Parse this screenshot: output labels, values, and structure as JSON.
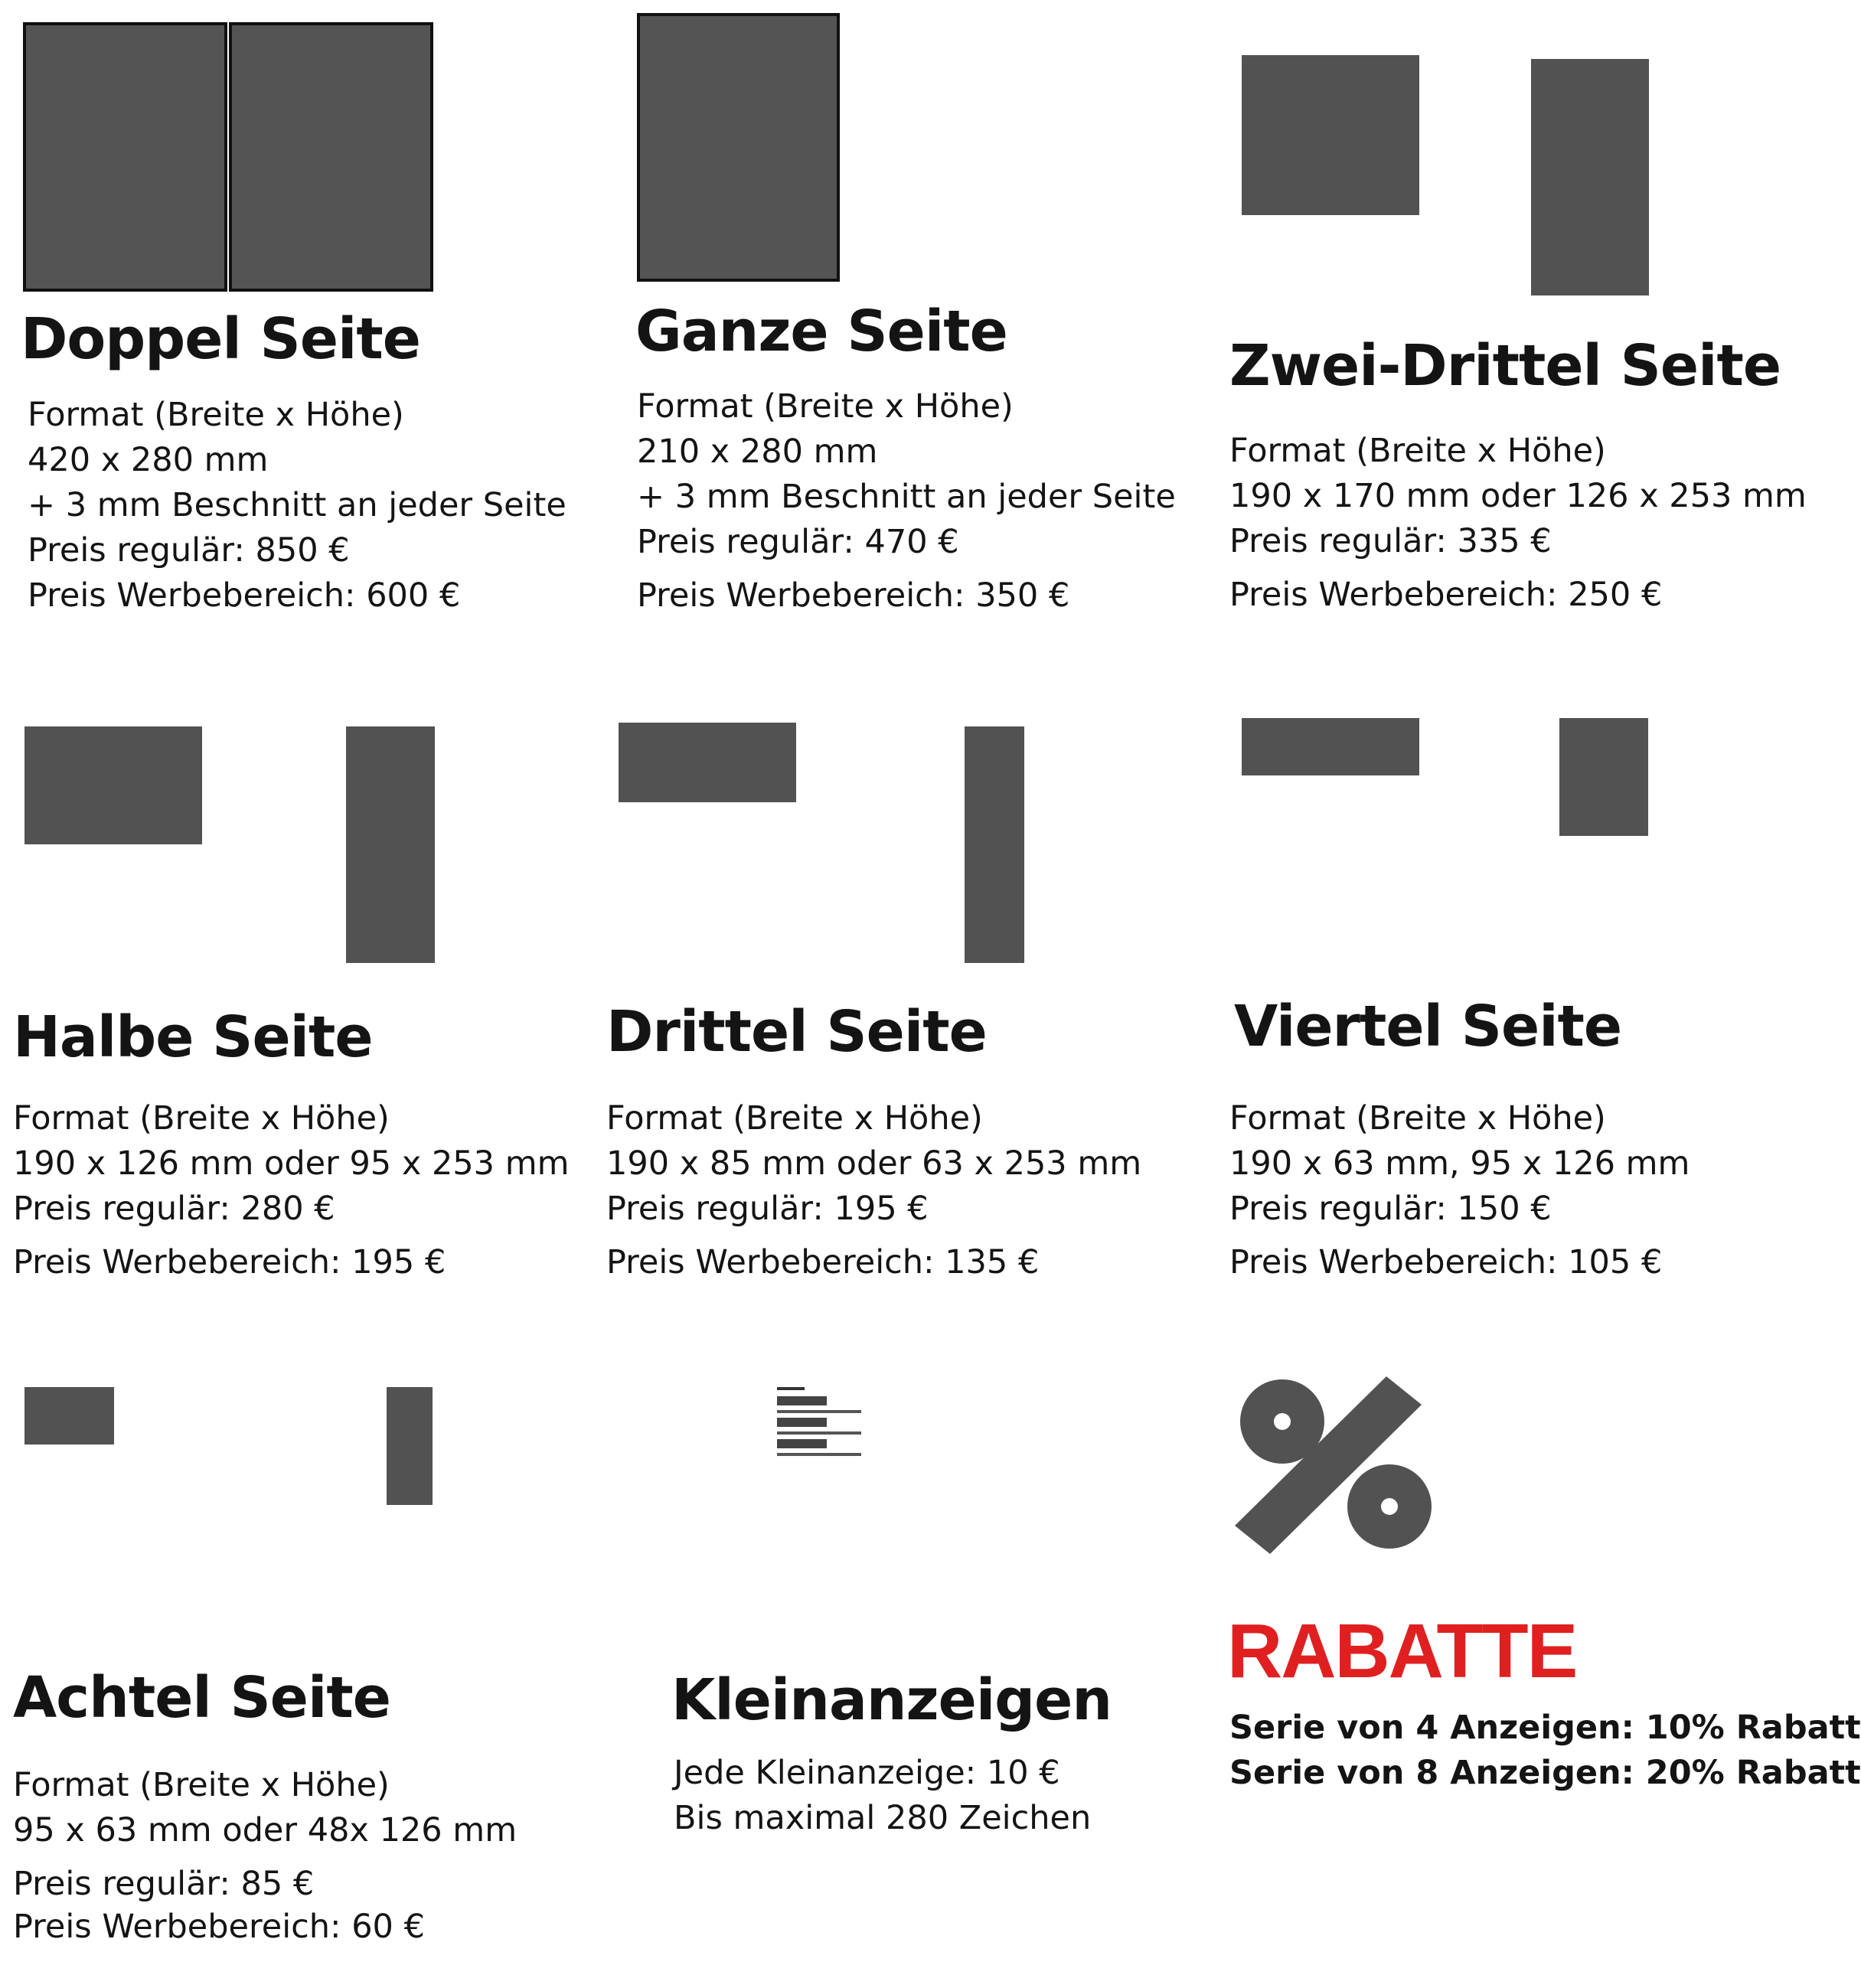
{
  "colors": {
    "shape": "#525252",
    "text": "#141414",
    "accent": "#e02020"
  },
  "icons": {
    "classified": "text-lines-icon",
    "discount": "percent-icon"
  },
  "formats": [
    {
      "title": "Doppel Seite",
      "size_label": "Format (Breite x Höhe)",
      "size": "420 x 280 mm",
      "bleed": "+ 3 mm Beschnitt an jeder Seite",
      "price_regular": "Preis regulär: 850 €",
      "price_ad_area": "Preis Werbebereich: 600 €"
    },
    {
      "title": "Ganze Seite",
      "size_label": "Format (Breite x Höhe)",
      "size": "210 x 280 mm",
      "bleed": "+ 3 mm Beschnitt an jeder Seite",
      "price_regular": "Preis regulär: 470 €",
      "price_ad_area": "Preis Werbebereich: 350 €"
    },
    {
      "title": "Zwei-Drittel Seite",
      "size_label": "Format (Breite x Höhe)",
      "size": "190 x 170 mm oder 126 x 253 mm",
      "price_regular": "Preis regulär: 335 €",
      "price_ad_area": "Preis Werbebereich: 250 €"
    },
    {
      "title": "Halbe Seite",
      "size_label": "Format (Breite x Höhe)",
      "size": "190 x 126 mm oder 95 x 253 mm",
      "price_regular": "Preis regulär: 280 €",
      "price_ad_area": "Preis Werbebereich: 195 €"
    },
    {
      "title": "Drittel Seite",
      "size_label": "Format (Breite x Höhe)",
      "size": "190 x 85 mm oder 63 x 253 mm",
      "price_regular": "Preis regulär: 195 €",
      "price_ad_area": "Preis Werbebereich: 135 €"
    },
    {
      "title": "Viertel Seite",
      "size_label": "Format (Breite x Höhe)",
      "size": "190 x 63 mm, 95 x 126 mm",
      "price_regular": "Preis regulär: 150 €",
      "price_ad_area": "Preis Werbebereich: 105 €"
    },
    {
      "title": "Achtel Seite",
      "size_label": "Format (Breite x Höhe)",
      "size": "95 x 63 mm oder 48x 126 mm",
      "price_regular": "Preis regulär: 85 €",
      "price_ad_area": "Preis Werbebereich: 60 €"
    }
  ],
  "classifieds": {
    "title": "Kleinanzeigen",
    "price": "Jede Kleinanzeige: 10 €",
    "limit": "Bis maximal 280 Zeichen"
  },
  "discounts": {
    "title": "RABATTE",
    "series_4": "Serie von 4 Anzeigen: 10% Rabatt",
    "series_8": "Serie von 8 Anzeigen: 20% Rabatt"
  }
}
